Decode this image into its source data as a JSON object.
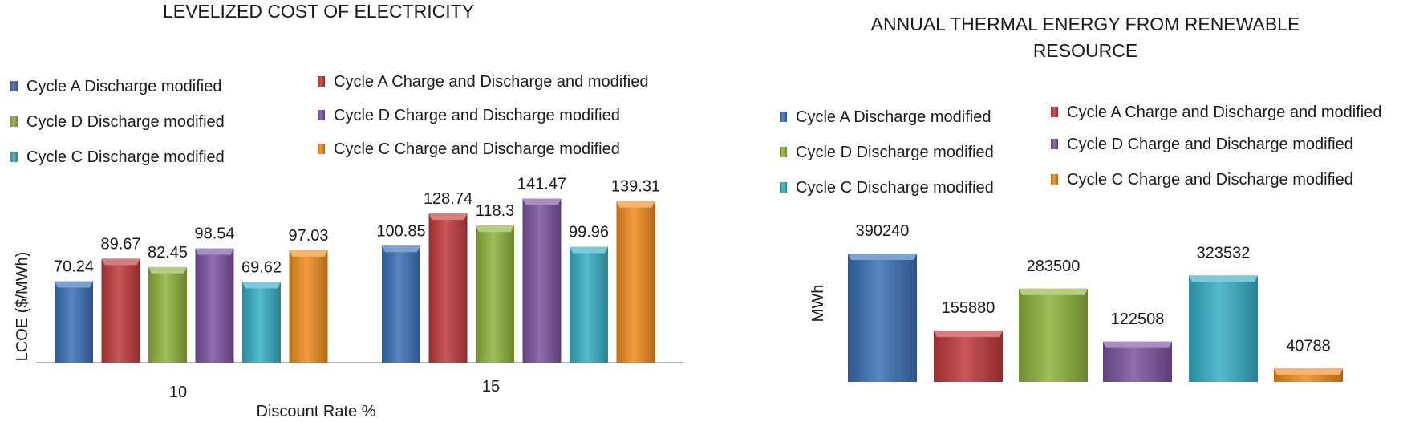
{
  "colors": {
    "series": [
      "#3a6fb5",
      "#c0383a",
      "#8db33c",
      "#7a52a0",
      "#35aec4",
      "#f08a1c"
    ],
    "axis": "#9a9a9a"
  },
  "chart_data": [
    {
      "type": "bar",
      "title": "LEVELIZED COST OF ELECTRICITY",
      "xlabel": "Discount Rate %",
      "ylabel": "LCOE ($/MWh)",
      "categories": [
        "10",
        "15"
      ],
      "ylim": [
        0,
        160
      ],
      "grid": false,
      "legend_position": "top",
      "series": [
        {
          "name": "Cycle A Discharge modified",
          "values": [
            70.24,
            100.85
          ]
        },
        {
          "name": "Cycle A Charge and Discharge and modified",
          "values": [
            89.67,
            128.74
          ]
        },
        {
          "name": "Cycle D Discharge modified",
          "values": [
            82.45,
            118.3
          ]
        },
        {
          "name": "Cycle D Charge and Discharge modified",
          "values": [
            98.54,
            141.47
          ]
        },
        {
          "name": "Cycle C Discharge modified",
          "values": [
            69.62,
            99.96
          ]
        },
        {
          "name": "Cycle C Charge and Discharge modified",
          "values": [
            97.03,
            139.31
          ]
        }
      ]
    },
    {
      "type": "bar",
      "title": "ANNUAL THERMAL ENERGY FROM RENEWABLE RESOURCE",
      "title_lines": [
        "ANNUAL THERMAL ENERGY FROM RENEWABLE",
        "RESOURCE"
      ],
      "xlabel": "",
      "ylabel": "MWh",
      "ylim": [
        0,
        420000
      ],
      "grid": false,
      "legend_position": "top",
      "series": [
        {
          "name": "Cycle A Discharge modified",
          "values": [
            390240
          ]
        },
        {
          "name": "Cycle A Charge and Discharge and modified",
          "values": [
            155880
          ]
        },
        {
          "name": "Cycle D Discharge modified",
          "values": [
            283500
          ]
        },
        {
          "name": "Cycle D Charge and Discharge modified",
          "values": [
            122508
          ]
        },
        {
          "name": "Cycle C Discharge modified",
          "values": [
            323532
          ]
        },
        {
          "name": "Cycle C Charge and Discharge modified",
          "values": [
            40788
          ]
        }
      ]
    }
  ]
}
